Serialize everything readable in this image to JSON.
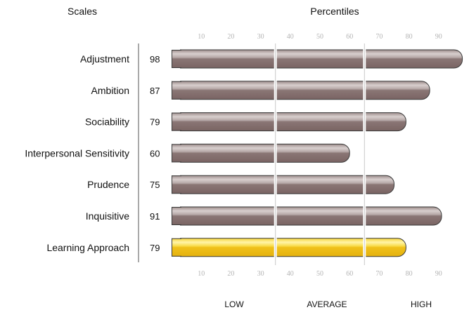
{
  "headers": {
    "scales": "Scales",
    "percentiles": "Percentiles"
  },
  "bands": [
    "LOW",
    "AVERAGE",
    "HIGH"
  ],
  "colors": {
    "bar": "#867372",
    "bar_highlight": "#f2c21b",
    "border": "#3a3a3a",
    "divider": "#c8c8c8",
    "tick": "#b4b4b4"
  },
  "chart_data": {
    "type": "bar",
    "orientation": "horizontal",
    "title": "",
    "xlabel": "Percentiles",
    "ylabel": "Scales",
    "xlim": [
      0,
      100
    ],
    "x_ticks": [
      10,
      20,
      30,
      40,
      50,
      60,
      70,
      80,
      90
    ],
    "band_boundaries": [
      35,
      65
    ],
    "categories": [
      "Adjustment",
      "Ambition",
      "Sociability",
      "Interpersonal Sensitivity",
      "Prudence",
      "Inquisitive",
      "Learning Approach"
    ],
    "values": [
      98,
      87,
      79,
      60,
      75,
      91,
      79
    ],
    "highlighted": [
      "Learning Approach"
    ],
    "grid": false
  }
}
